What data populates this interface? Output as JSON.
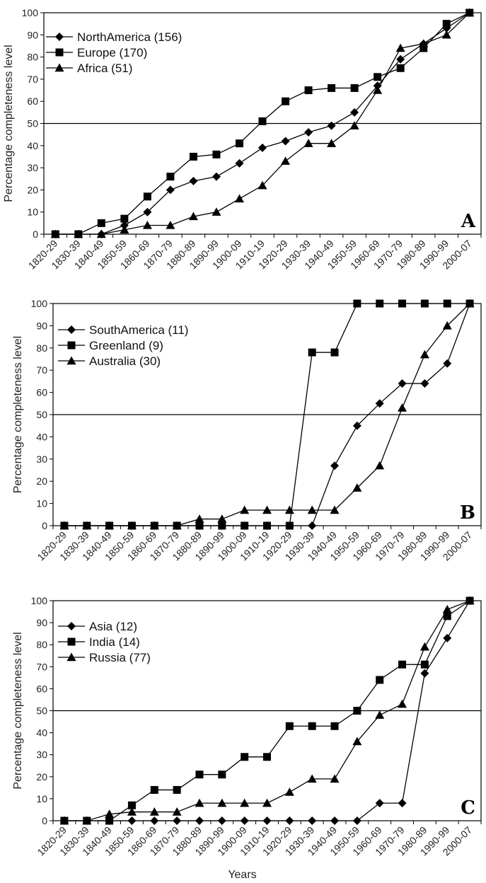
{
  "chart_data": [
    {
      "type": "line",
      "panel_label": "A",
      "ylabel": "Percentage completeness level",
      "xlabel": "",
      "ylim": [
        0,
        100
      ],
      "yticks": [
        0,
        10,
        20,
        30,
        40,
        50,
        60,
        70,
        80,
        90,
        100
      ],
      "reference_line": 50,
      "legend_position": "top-left",
      "categories": [
        "1820-29",
        "1830-39",
        "1840-49",
        "1850-59",
        "1860-69",
        "1870-79",
        "1880-89",
        "1890-99",
        "1900-09",
        "1910-19",
        "1920-29",
        "1930-39",
        "1940-49",
        "1950-59",
        "1960-69",
        "1970-79",
        "1980-89",
        "1990-99",
        "2000-07"
      ],
      "series": [
        {
          "name": "NorthAmerica (156)",
          "marker": "diamond",
          "values": [
            0,
            0,
            0,
            4,
            10,
            20,
            24,
            26,
            32,
            39,
            42,
            46,
            49,
            55,
            67,
            79,
            86,
            93,
            100
          ]
        },
        {
          "name": "Europe (170)",
          "marker": "square",
          "values": [
            0,
            0,
            5,
            7,
            17,
            26,
            35,
            36,
            41,
            51,
            60,
            65,
            66,
            66,
            71,
            75,
            84,
            95,
            100
          ]
        },
        {
          "name": "Africa (51)",
          "marker": "triangle",
          "values": [
            0,
            0,
            0,
            2,
            4,
            4,
            8,
            10,
            16,
            22,
            33,
            41,
            41,
            49,
            65,
            84,
            86,
            90,
            100
          ]
        }
      ]
    },
    {
      "type": "line",
      "panel_label": "B",
      "ylabel": "Percentage completeness level",
      "xlabel": "",
      "ylim": [
        0,
        100
      ],
      "yticks": [
        0,
        10,
        20,
        30,
        40,
        50,
        60,
        70,
        80,
        90,
        100
      ],
      "reference_line": 50,
      "legend_position": "top-left",
      "categories": [
        "1820-29",
        "1830-39",
        "1840-49",
        "1850-59",
        "1860-69",
        "1870-79",
        "1880-89",
        "1890-99",
        "1900-09",
        "1910-19",
        "1920-29",
        "1930-39",
        "1940-49",
        "1950-59",
        "1960-69",
        "1970-79",
        "1980-89",
        "1990-99",
        "2000-07"
      ],
      "series": [
        {
          "name": "SouthAmerica (11)",
          "marker": "diamond",
          "values": [
            0,
            0,
            0,
            0,
            0,
            0,
            0,
            0,
            0,
            0,
            0,
            0,
            27,
            45,
            55,
            64,
            64,
            73,
            100
          ]
        },
        {
          "name": "Greenland (9)",
          "marker": "square",
          "values": [
            0,
            0,
            0,
            0,
            0,
            0,
            0,
            0,
            0,
            0,
            0,
            78,
            78,
            100,
            100,
            100,
            100,
            100,
            100
          ]
        },
        {
          "name": "Australia (30)",
          "marker": "triangle",
          "values": [
            0,
            0,
            0,
            0,
            0,
            0,
            3,
            3,
            7,
            7,
            7,
            7,
            7,
            17,
            27,
            53,
            77,
            90,
            100
          ]
        }
      ]
    },
    {
      "type": "line",
      "panel_label": "C",
      "ylabel": "Percentage completeness level",
      "xlabel": "Years",
      "ylim": [
        0,
        100
      ],
      "yticks": [
        0,
        10,
        20,
        30,
        40,
        50,
        60,
        70,
        80,
        90,
        100
      ],
      "reference_line": 50,
      "legend_position": "top-left",
      "categories": [
        "1820-29",
        "1830-39",
        "1840-49",
        "1850-59",
        "1860-69",
        "1870-79",
        "1880-89",
        "1890-99",
        "1900-09",
        "1910-19",
        "1920-29",
        "1930-39",
        "1940-49",
        "1950-59",
        "1960-69",
        "1970-79",
        "1980-89",
        "1990-99",
        "2000-07"
      ],
      "series": [
        {
          "name": "Asia (12)",
          "marker": "diamond",
          "values": [
            0,
            0,
            0,
            0,
            0,
            0,
            0,
            0,
            0,
            0,
            0,
            0,
            0,
            0,
            8,
            8,
            67,
            83,
            100
          ]
        },
        {
          "name": "India (14)",
          "marker": "square",
          "values": [
            0,
            0,
            0,
            7,
            14,
            14,
            21,
            21,
            29,
            29,
            43,
            43,
            43,
            50,
            64,
            71,
            71,
            93,
            100
          ]
        },
        {
          "name": "Russia (77)",
          "marker": "triangle",
          "values": [
            0,
            0,
            3,
            4,
            4,
            4,
            8,
            8,
            8,
            8,
            13,
            19,
            19,
            36,
            48,
            53,
            79,
            96,
            100
          ]
        }
      ]
    }
  ]
}
